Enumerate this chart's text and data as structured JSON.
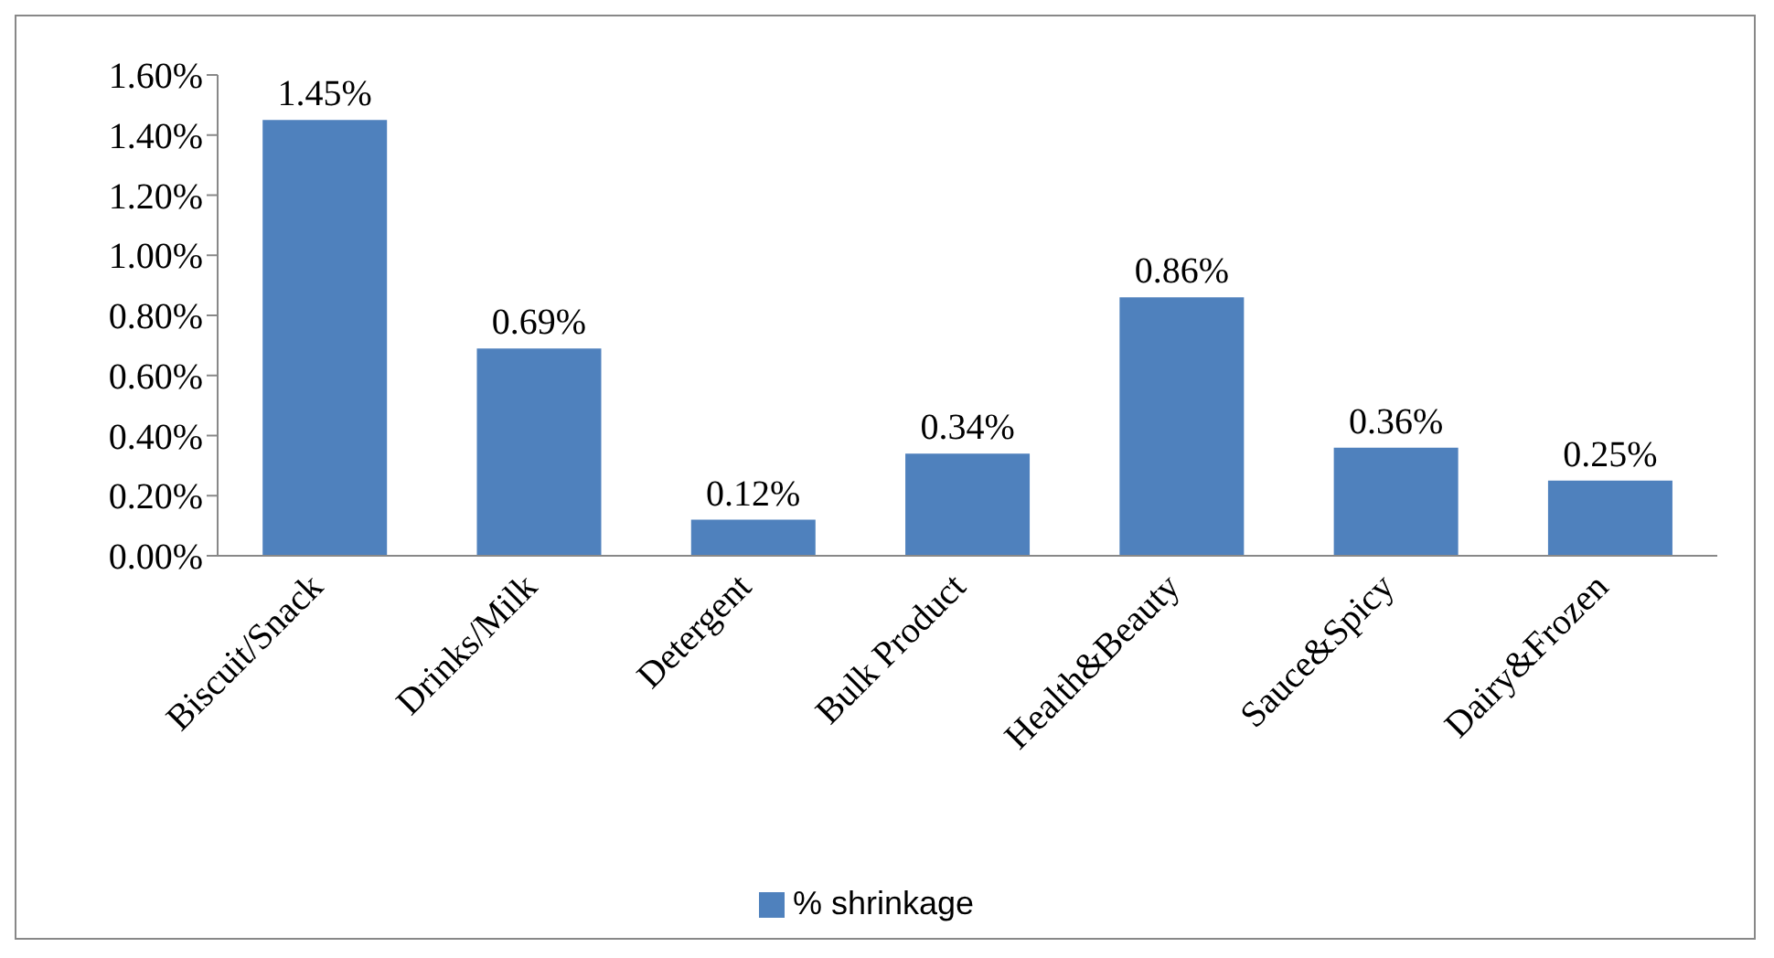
{
  "chart_data": {
    "type": "bar",
    "categories": [
      "Biscuit/Snack",
      "Drinks/Milk",
      "Detergent",
      "Bulk Product",
      "Health&Beauty",
      "Sauce&Spicy",
      "Dairy&Frozen"
    ],
    "series": [
      {
        "name": "% shrinkage",
        "color": "#4f81bd",
        "values": [
          1.45,
          0.69,
          0.12,
          0.34,
          0.86,
          0.36,
          0.25
        ],
        "value_labels": [
          "1.45%",
          "0.69%",
          "0.12%",
          "0.34%",
          "0.86%",
          "0.36%",
          "0.25%"
        ]
      }
    ],
    "ylim": [
      0,
      1.6
    ],
    "yticks": [
      {
        "value": 0,
        "label": "0.00%"
      },
      {
        "value": 0.2,
        "label": "0.20%"
      },
      {
        "value": 0.4,
        "label": "0.40%"
      },
      {
        "value": 0.6,
        "label": "0.60%"
      },
      {
        "value": 0.8,
        "label": "0.80%"
      },
      {
        "value": 1.0,
        "label": "1.00%"
      },
      {
        "value": 1.2,
        "label": "1.20%"
      },
      {
        "value": 1.4,
        "label": "1.40%"
      },
      {
        "value": 1.6,
        "label": "1.60%"
      }
    ],
    "grid": false,
    "legend": "bottom"
  }
}
